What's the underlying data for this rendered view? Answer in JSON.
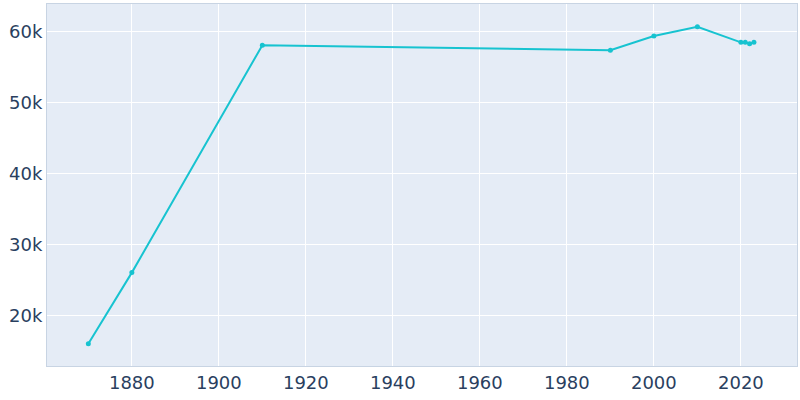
{
  "chart_data": {
    "type": "line",
    "x": [
      1870,
      1880,
      1910,
      1990,
      2000,
      2010,
      2020,
      2021,
      2022,
      2023
    ],
    "values": [
      16100,
      26100,
      58100,
      57400,
      59400,
      60700,
      58500,
      58500,
      58300,
      58500
    ],
    "color": "#17c3d0",
    "marker": "circle",
    "xlim": [
      1860.5,
      2032.9
    ],
    "xticks": [
      1880,
      1900,
      1920,
      1940,
      1960,
      1980,
      2000,
      2020
    ],
    "ylim": [
      12960,
      63900
    ],
    "yticks": [
      {
        "value": 20000,
        "label": "20k"
      },
      {
        "value": 30000,
        "label": "30k"
      },
      {
        "value": 40000,
        "label": "40k"
      },
      {
        "value": 50000,
        "label": "50k"
      },
      {
        "value": 60000,
        "label": "60k"
      }
    ],
    "grid": true
  }
}
